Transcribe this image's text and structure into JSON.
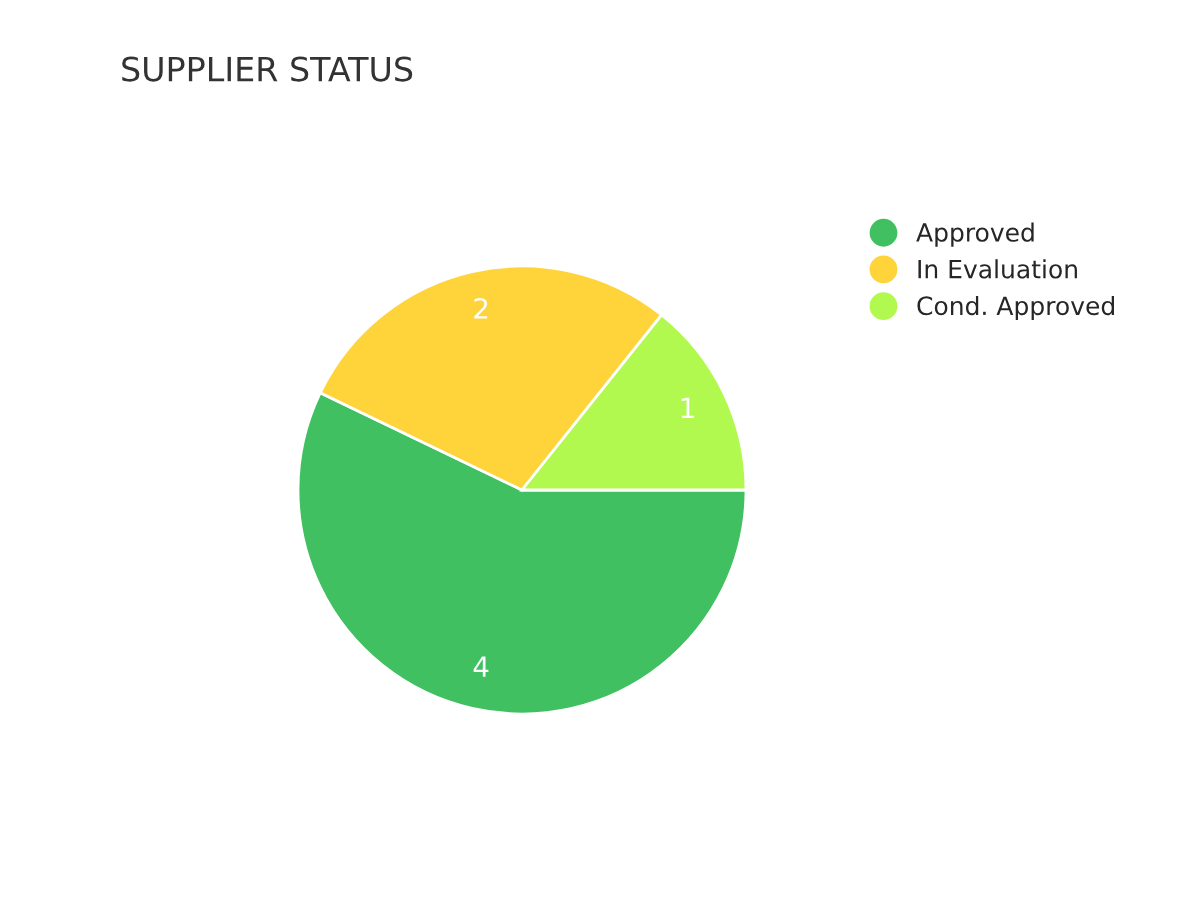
{
  "chart_data": {
    "type": "pie",
    "title": "SUPPLIER STATUS",
    "categories": [
      "Approved",
      "In Evaluation",
      "Cond. Approved"
    ],
    "values": [
      4,
      2,
      1
    ],
    "colors": [
      "#40c060",
      "#ffd43b",
      "#b2f94f"
    ],
    "data_labels": true,
    "legend": "top right"
  }
}
